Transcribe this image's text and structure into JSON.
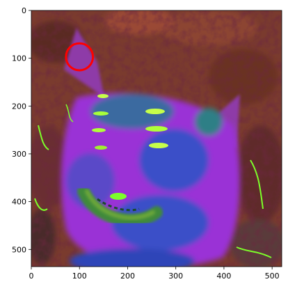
{
  "chart_data": {
    "type": "image",
    "xlim": [
      0,
      520
    ],
    "ylim": [
      536,
      0
    ],
    "x_ticks": [
      0,
      100,
      200,
      300,
      400,
      500
    ],
    "y_ticks": [
      0,
      100,
      200,
      300,
      400,
      500
    ],
    "annotation": {
      "shape": "circle",
      "center": [
        100,
        97
      ],
      "radius": 28,
      "color": "#ff0000"
    }
  },
  "image_description": {
    "subject": "false-color processed image of a cat face",
    "colors": {
      "background": "#7a3b2e",
      "face": "#9a33d6",
      "blue_region": "#3a4fc8",
      "highlight": "#7cff2a",
      "teal": "#2f7f86"
    }
  }
}
